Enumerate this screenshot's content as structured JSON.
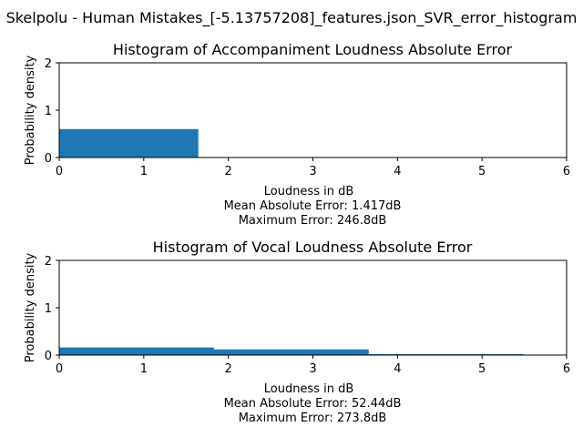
{
  "figure_title": "Skelpolu - Human Mistakes_[-5.13757208]_features.json_SVR_error_histogram",
  "chart_data": [
    {
      "type": "bar",
      "title": "Histogram of Accompaniment Loudness Absolute Error",
      "xlabel": "Loudness in dB",
      "ylabel": "Probability density",
      "xlabel_lines": [
        "Mean Absolute Error: 1.417dB",
        "Maximum Error: 246.8dB"
      ],
      "xlim": [
        0,
        6
      ],
      "ylim": [
        0,
        2
      ],
      "xticks": [
        "0",
        "1",
        "2",
        "3",
        "4",
        "5",
        "6"
      ],
      "yticks": [
        "0",
        "1",
        "2"
      ],
      "bins": [
        {
          "x0": 0,
          "x1": 1.645,
          "density": 0.6
        }
      ],
      "color": "#1f77b4"
    },
    {
      "type": "bar",
      "title": "Histogram of Vocal Loudness Absolute Error",
      "xlabel": "Loudness in dB",
      "ylabel": "Probability density",
      "xlabel_lines": [
        "Mean Absolute Error: 52.44dB",
        "Maximum Error: 273.8dB"
      ],
      "xlim": [
        0,
        6
      ],
      "ylim": [
        0,
        2
      ],
      "xticks": [
        "0",
        "1",
        "2",
        "3",
        "4",
        "5",
        "6"
      ],
      "yticks": [
        "0",
        "1",
        "2"
      ],
      "bins": [
        {
          "x0": 0,
          "x1": 1.83,
          "density": 0.16
        },
        {
          "x0": 1.83,
          "x1": 3.66,
          "density": 0.12
        },
        {
          "x0": 3.66,
          "x1": 5.49,
          "density": 0.02
        }
      ],
      "color": "#1f77b4"
    }
  ]
}
